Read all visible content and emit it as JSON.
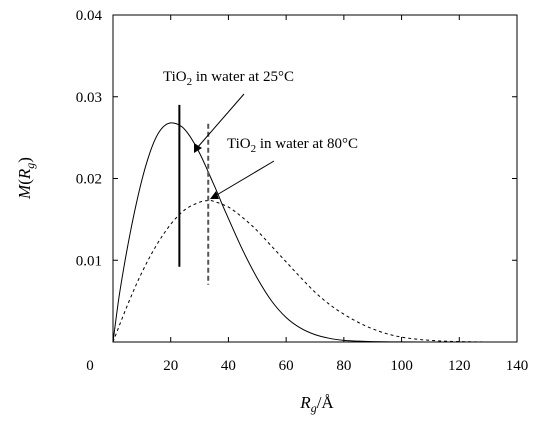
{
  "chart_data": {
    "type": "line",
    "xlabel": {
      "main": "R",
      "sub": "g",
      "tail": "/Å"
    },
    "ylabel": {
      "main": "M",
      "open": "(",
      "var": "R",
      "sub": "g",
      "close": ")"
    },
    "xlim": [
      0,
      140
    ],
    "ylim": [
      0,
      0.04
    ],
    "x_ticks": [
      0,
      20,
      40,
      60,
      80,
      100,
      120,
      140
    ],
    "x_tick_labels": [
      "0",
      "20",
      "40",
      "60",
      "80",
      "100",
      "120",
      "140"
    ],
    "y_ticks": [
      0.01,
      0.02,
      0.03,
      0.04
    ],
    "y_tick_labels": [
      "0.01",
      "0.02",
      "0.03",
      "0.04"
    ],
    "grid": false,
    "series": [
      {
        "style": "solid",
        "x": [
          0,
          2,
          4,
          6,
          8,
          10,
          12,
          14,
          16,
          18,
          20,
          22,
          24,
          26,
          28,
          30,
          32,
          34,
          36,
          38,
          40,
          45,
          50,
          55,
          60,
          65,
          70,
          75,
          80,
          85,
          90,
          100,
          110,
          120,
          130
        ],
        "y": [
          0.0,
          0.0053,
          0.0096,
          0.0134,
          0.0168,
          0.0198,
          0.0223,
          0.0243,
          0.0257,
          0.0265,
          0.0268,
          0.0267,
          0.0263,
          0.0255,
          0.0244,
          0.0231,
          0.0216,
          0.02,
          0.0184,
          0.0167,
          0.0151,
          0.0112,
          0.0078,
          0.005,
          0.003,
          0.0017,
          0.0009,
          0.00045,
          0.0002,
          0.0001,
          5e-05,
          1e-05,
          0.0,
          0.0,
          0.0
        ]
      },
      {
        "style": "dashed",
        "x": [
          0,
          5,
          10,
          15,
          20,
          25,
          30,
          33,
          35,
          40,
          45,
          50,
          55,
          60,
          65,
          70,
          75,
          80,
          85,
          90,
          95,
          100,
          105,
          110,
          115,
          120,
          125,
          130
        ],
        "y": [
          0.0,
          0.0045,
          0.0085,
          0.0118,
          0.0144,
          0.0162,
          0.0171,
          0.0173,
          0.0172,
          0.0165,
          0.0152,
          0.0136,
          0.0117,
          0.0098,
          0.0079,
          0.0061,
          0.0046,
          0.0034,
          0.0024,
          0.0016,
          0.001,
          0.0006,
          0.00035,
          0.0002,
          0.0001,
          5e-05,
          2e-05,
          0.0
        ]
      }
    ],
    "markers": [
      {
        "style": "solid",
        "x": 23,
        "y_top": 0.029,
        "y_bottom": 0.0092
      },
      {
        "style": "dashed",
        "x": 33,
        "y_top": 0.0267,
        "y_bottom": 0.007
      }
    ],
    "annotations": [
      {
        "text_pre": "TiO",
        "text_sub": "2",
        "text_post": " in water at 25°C"
      },
      {
        "text_pre": "TiO",
        "text_sub": "2",
        "text_post": " in water at 80°C"
      }
    ]
  }
}
